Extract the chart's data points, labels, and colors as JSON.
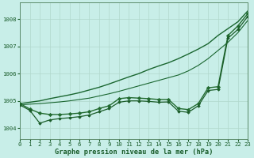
{
  "background_color": "#c8eee8",
  "grid_color": "#b0d8cc",
  "line_color_dark": "#1a5c2a",
  "xlabel": "Graphe pression niveau de la mer (hPa)",
  "xlim": [
    0,
    23
  ],
  "ylim": [
    1003.6,
    1008.6
  ],
  "yticks": [
    1004,
    1005,
    1006,
    1007,
    1008
  ],
  "xticks": [
    0,
    1,
    2,
    3,
    4,
    5,
    6,
    7,
    8,
    9,
    10,
    11,
    12,
    13,
    14,
    15,
    16,
    17,
    18,
    19,
    20,
    21,
    22,
    23
  ],
  "series_upper": {
    "x": [
      0,
      1,
      2,
      3,
      4,
      5,
      6,
      7,
      8,
      9,
      10,
      11,
      12,
      13,
      14,
      15,
      16,
      17,
      18,
      19,
      20,
      21,
      22,
      23
    ],
    "y": [
      1004.9,
      1004.95,
      1005.0,
      1005.08,
      1005.15,
      1005.22,
      1005.3,
      1005.4,
      1005.5,
      1005.62,
      1005.75,
      1005.88,
      1006.0,
      1006.15,
      1006.28,
      1006.4,
      1006.55,
      1006.72,
      1006.9,
      1007.1,
      1007.4,
      1007.65,
      1007.9,
      1008.3
    ],
    "color": "#1a6630",
    "linewidth": 1.0
  },
  "series_mid_upper": {
    "x": [
      0,
      1,
      2,
      3,
      4,
      5,
      6,
      7,
      8,
      9,
      10,
      11,
      12,
      13,
      14,
      15,
      16,
      17,
      18,
      19,
      20,
      21,
      22,
      23
    ],
    "y": [
      1004.85,
      1004.88,
      1004.9,
      1004.93,
      1004.96,
      1005.0,
      1005.05,
      1005.1,
      1005.18,
      1005.26,
      1005.35,
      1005.45,
      1005.55,
      1005.65,
      1005.75,
      1005.85,
      1005.95,
      1006.1,
      1006.3,
      1006.55,
      1006.85,
      1007.15,
      1007.5,
      1007.95
    ],
    "color": "#1a6630",
    "linewidth": 0.8
  },
  "series_marker1": {
    "x": [
      0,
      1,
      2,
      3,
      4,
      5,
      6,
      7,
      8,
      9,
      10,
      11,
      12,
      13,
      14,
      15,
      16,
      17,
      18,
      19,
      20,
      21,
      22,
      23
    ],
    "y": [
      1004.9,
      1004.7,
      1004.55,
      1004.5,
      1004.5,
      1004.52,
      1004.55,
      1004.6,
      1004.72,
      1004.82,
      1005.08,
      1005.12,
      1005.1,
      1005.08,
      1005.05,
      1005.05,
      1004.72,
      1004.68,
      1004.9,
      1005.48,
      1005.52,
      1007.4,
      1007.75,
      1008.2
    ],
    "color": "#226b30",
    "linewidth": 1.0,
    "marker": "D",
    "markersize": 2.2
  },
  "series_marker2": {
    "x": [
      0,
      1,
      2,
      3,
      4,
      5,
      6,
      7,
      8,
      9,
      10,
      11,
      12,
      13,
      14,
      15,
      16,
      17,
      18,
      19,
      20,
      21,
      22,
      23
    ],
    "y": [
      1004.85,
      1004.65,
      1004.18,
      1004.3,
      1004.35,
      1004.38,
      1004.42,
      1004.48,
      1004.6,
      1004.72,
      1004.95,
      1005.0,
      1005.0,
      1004.98,
      1004.95,
      1004.96,
      1004.62,
      1004.58,
      1004.82,
      1005.38,
      1005.42,
      1007.3,
      1007.62,
      1008.1
    ],
    "color": "#1a5c28",
    "linewidth": 0.9,
    "marker": "D",
    "markersize": 1.8
  }
}
